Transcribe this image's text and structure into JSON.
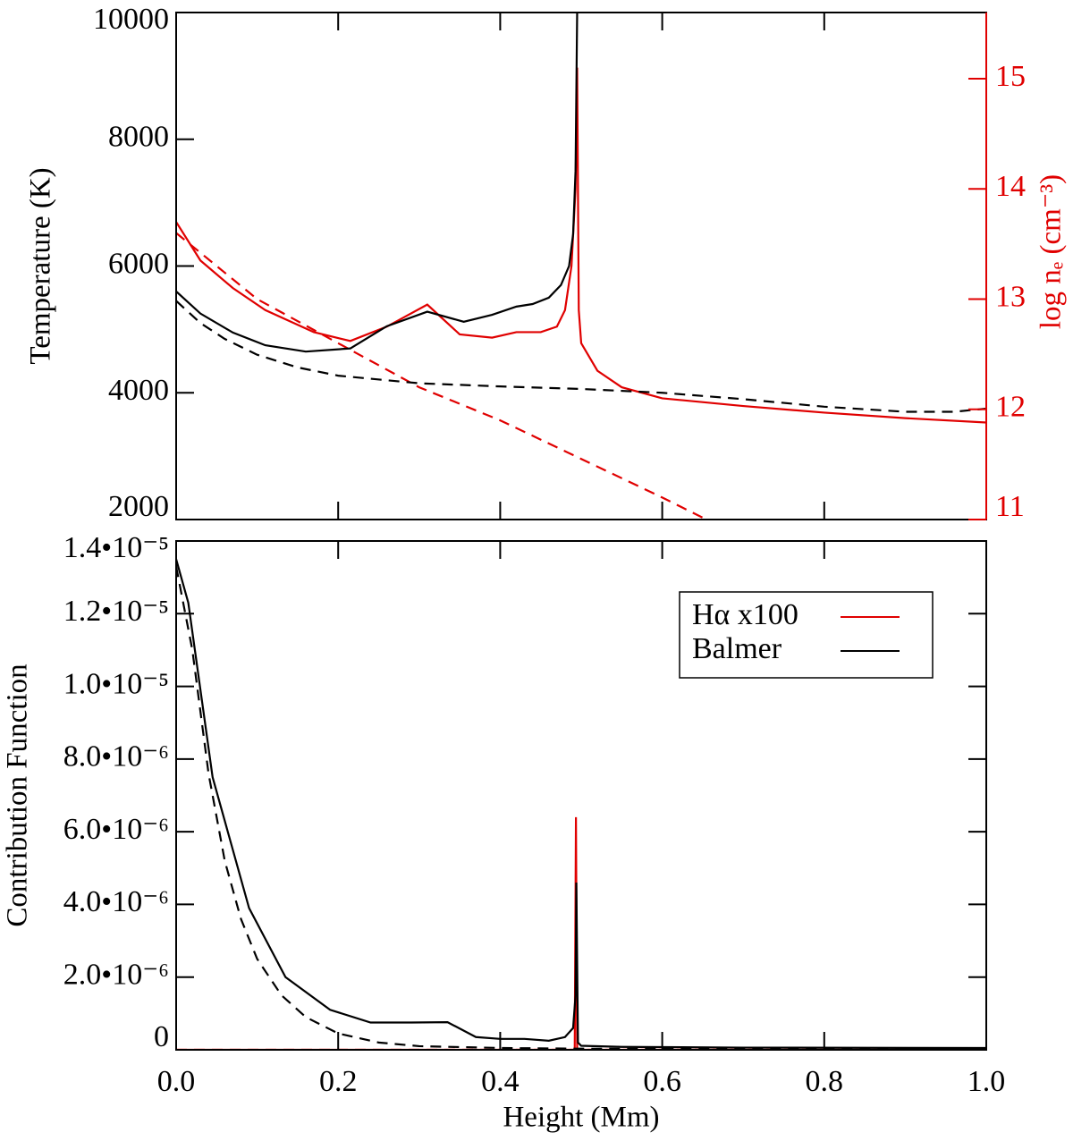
{
  "chart_data": [
    {
      "type": "line",
      "ylabel": "Temperature (K)",
      "y2label": "log nₑ (cm⁻³)",
      "y2color": "#e00000",
      "xlim": [
        0,
        1
      ],
      "xticks": [
        0,
        0.2,
        0.4,
        0.6,
        0.8,
        1
      ],
      "ylim": [
        2000,
        10000
      ],
      "yticks": [
        2000,
        4000,
        6000,
        8000,
        10000
      ],
      "y2lim": [
        11,
        15.6
      ],
      "y2ticks": [
        11,
        12,
        13,
        14,
        15
      ],
      "series": [
        {
          "color": "#e00000",
          "linestyle": "dashed",
          "axis": "y2",
          "x": [
            0,
            0.1,
            0.2,
            0.3,
            0.4,
            0.5,
            0.6,
            0.66
          ],
          "values": [
            13.6,
            13.0,
            12.6,
            12.2,
            11.9,
            11.55,
            11.2,
            10.98
          ]
        },
        {
          "color": "#e00000",
          "linestyle": "solid",
          "axis": "y2",
          "x": [
            0,
            0.03,
            0.07,
            0.11,
            0.17,
            0.215,
            0.26,
            0.31,
            0.35,
            0.39,
            0.42,
            0.45,
            0.47,
            0.48,
            0.488,
            0.493,
            0.495,
            0.497,
            0.5,
            0.52,
            0.55,
            0.6,
            0.7,
            0.8,
            0.9,
            1.0
          ],
          "values": [
            13.7,
            13.35,
            13.1,
            12.9,
            12.7,
            12.62,
            12.75,
            12.95,
            12.68,
            12.65,
            12.7,
            12.7,
            12.75,
            12.9,
            13.3,
            14.0,
            15.1,
            12.9,
            12.6,
            12.35,
            12.2,
            12.1,
            12.03,
            11.97,
            11.92,
            11.88
          ]
        },
        {
          "color": "#000000",
          "linestyle": "dashed",
          "x": [
            0,
            0.03,
            0.06,
            0.1,
            0.15,
            0.2,
            0.3,
            0.4,
            0.5,
            0.6,
            0.7,
            0.8,
            0.9,
            0.96,
            1.0
          ],
          "values": [
            5450,
            5100,
            4850,
            4600,
            4400,
            4270,
            4150,
            4100,
            4060,
            4000,
            3900,
            3780,
            3700,
            3700,
            3750
          ]
        },
        {
          "color": "#000000",
          "linestyle": "solid",
          "x": [
            0,
            0.03,
            0.07,
            0.11,
            0.16,
            0.215,
            0.26,
            0.31,
            0.355,
            0.39,
            0.42,
            0.44,
            0.46,
            0.475,
            0.485,
            0.49,
            0.493,
            0.495
          ],
          "values": [
            5600,
            5250,
            4950,
            4750,
            4650,
            4700,
            5050,
            5280,
            5120,
            5230,
            5360,
            5400,
            5500,
            5700,
            6000,
            6500,
            7500,
            10000
          ]
        }
      ]
    },
    {
      "type": "line",
      "xlabel": "Height (Mm)",
      "ylabel": "Contribution Function",
      "legend": "upper right",
      "xlim": [
        0,
        1
      ],
      "xticks": [
        {
          "value": 0,
          "label": "0.0"
        },
        0.2,
        0.4,
        0.6,
        0.8,
        {
          "value": 1,
          "label": "1.0"
        }
      ],
      "ylim": [
        0,
        1.4e-05
      ],
      "yticks": [
        0,
        {
          "value": 2e-06,
          "label": "2.0•10⁻⁶"
        },
        {
          "value": 4e-06,
          "label": "4.0•10⁻⁶"
        },
        {
          "value": 6e-06,
          "label": "6.0•10⁻⁶"
        },
        {
          "value": 8e-06,
          "label": "8.0•10⁻⁶"
        },
        {
          "value": 1e-05,
          "label": "1.0•10⁻⁵"
        },
        {
          "value": 1.2e-05,
          "label": "1.2•10⁻⁵"
        },
        {
          "value": 1.4e-05,
          "label": "1.4•10⁻⁵"
        }
      ],
      "series": [
        {
          "name": "Hα x100",
          "color": "#e00000",
          "linestyle": "solid",
          "x": [
            0,
            0.492,
            0.4935,
            0.495,
            1.0
          ],
          "values": [
            0,
            0,
            6.4e-06,
            0,
            0
          ]
        },
        {
          "color": "#e00000",
          "linestyle": "dashed",
          "x": [
            0,
            1.0
          ],
          "values": [
            0,
            0
          ]
        },
        {
          "color": "#000000",
          "linestyle": "dashed",
          "x": [
            0,
            0.02,
            0.04,
            0.06,
            0.08,
            0.1,
            0.13,
            0.16,
            0.2,
            0.25,
            0.3,
            0.4,
            0.5,
            1.0
          ],
          "values": [
            1.33e-05,
            1.1e-05,
            7.6e-06,
            5.2e-06,
            3.6e-06,
            2.5e-06,
            1.5e-06,
            9e-07,
            4.5e-07,
            2e-07,
            1e-07,
            5e-08,
            3e-08,
            2e-08
          ]
        },
        {
          "name": "Balmer",
          "color": "#000000",
          "linestyle": "solid",
          "x": [
            0,
            0.015,
            0.045,
            0.09,
            0.135,
            0.19,
            0.24,
            0.29,
            0.335,
            0.37,
            0.4,
            0.43,
            0.46,
            0.48,
            0.49,
            0.493,
            0.494,
            0.496,
            0.5,
            0.55,
            0.7,
            1.0
          ],
          "values": [
            1.35e-05,
            1.23e-05,
            7.5e-06,
            3.9e-06,
            2e-06,
            1.1e-06,
            7.5e-07,
            7.5e-07,
            7.6e-07,
            3.5e-07,
            3e-07,
            3e-07,
            2.5e-07,
            3.5e-07,
            6e-07,
            1.5e-06,
            4.6e-06,
            2e-07,
            1.1e-07,
            8e-08,
            6e-08,
            5e-08
          ]
        }
      ]
    }
  ]
}
